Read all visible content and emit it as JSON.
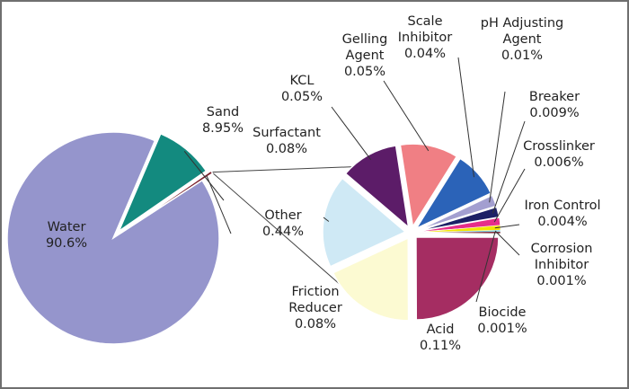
{
  "chart_data": {
    "type": "pie",
    "title": "",
    "main_pie": {
      "slices": [
        {
          "name": "Water",
          "value": 90.6,
          "label": "Water\n90.6%",
          "color": "#9595cc"
        },
        {
          "name": "Sand",
          "value": 8.95,
          "label": "Sand\n8.95%",
          "color": "#138a7f"
        },
        {
          "name": "Other",
          "value": 0.44,
          "label": "Other\n0.44%",
          "color": "#7a1f2a"
        }
      ]
    },
    "breakdown_pie": {
      "of": "Other",
      "slices": [
        {
          "name": "Acid",
          "value": 0.11,
          "label": "Acid\n0.11%",
          "color": "#a52d62"
        },
        {
          "name": "Friction Reducer",
          "value": 0.08,
          "label": "Friction\nReducer\n0.08%",
          "color": "#fcfad2"
        },
        {
          "name": "Surfactant",
          "value": 0.08,
          "label": "Surfactant\n0.08%",
          "color": "#cfe9f5"
        },
        {
          "name": "KCL",
          "value": 0.05,
          "label": "KCL\n0.05%",
          "color": "#5c1c68"
        },
        {
          "name": "Gelling Agent",
          "value": 0.05,
          "label": "Gelling\nAgent\n0.05%",
          "color": "#f07f84"
        },
        {
          "name": "Scale Inhibitor",
          "value": 0.04,
          "label": "Scale\nInhibitor\n0.04%",
          "color": "#2b63b8"
        },
        {
          "name": "pH Adjusting Agent",
          "value": 0.01,
          "label": "pH Adjusting\nAgent\n0.01%",
          "color": "#a39fd0"
        },
        {
          "name": "Breaker",
          "value": 0.009,
          "label": "Breaker\n0.009%",
          "color": "#1c2066"
        },
        {
          "name": "Crosslinker",
          "value": 0.006,
          "label": "Crosslinker\n0.006%",
          "color": "#e62d8a"
        },
        {
          "name": "Iron Control",
          "value": 0.004,
          "label": "Iron Control\n0.004%",
          "color": "#f2e600"
        },
        {
          "name": "Corrosion Inhibitor",
          "value": 0.001,
          "label": "Corrosion\nInhibitor\n0.001%",
          "color": "#22a8c8"
        },
        {
          "name": "Biocide",
          "value": 0.001,
          "label": "Biocide\n0.001%",
          "color": "#6d1426"
        }
      ]
    }
  },
  "style": {
    "stroke_color": "#ffffff",
    "leader_color": "#333333",
    "connector_color": "#444444",
    "border_color": "#6f6f6f"
  }
}
